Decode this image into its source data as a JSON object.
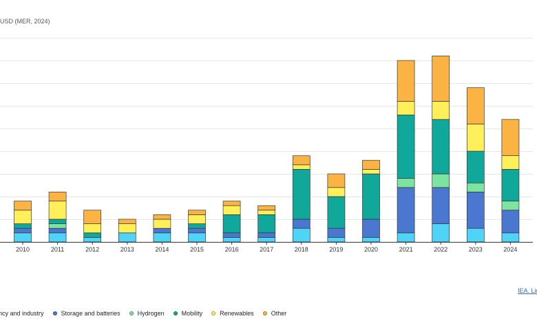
{
  "chart_data": {
    "type": "bar",
    "stacked": true,
    "unit_label": "USD (MER, 2024)",
    "categories": [
      "2010",
      "2011",
      "2012",
      "2013",
      "2014",
      "2015",
      "2016",
      "2017",
      "2018",
      "2019",
      "2020",
      "2021",
      "2022",
      "2023",
      "2024"
    ],
    "ylim": [
      0,
      9
    ],
    "grid": true,
    "legend_placement": "bottom",
    "series": [
      {
        "name": "ncy and industry",
        "color": "#4fd3f7",
        "values": [
          0.4,
          0.4,
          0.2,
          0.4,
          0.4,
          0.4,
          0.2,
          0.2,
          0.6,
          0.2,
          0.2,
          0.4,
          0.8,
          0.6,
          0.4
        ]
      },
      {
        "name": "Storage and batteries",
        "color": "#4a78d0",
        "values": [
          0.2,
          0.2,
          0,
          0,
          0.2,
          0.2,
          0.2,
          0.2,
          0.4,
          0.4,
          0.8,
          2.0,
          1.6,
          1.6,
          1.0
        ]
      },
      {
        "name": "Hydrogen",
        "color": "#7de3a0",
        "values": [
          0,
          0.2,
          0,
          0,
          0,
          0,
          0,
          0,
          0,
          0,
          0,
          0.4,
          0.6,
          0.4,
          0.4
        ]
      },
      {
        "name": "Mobility",
        "color": "#0fa89b",
        "values": [
          0.2,
          0.2,
          0.2,
          0,
          0,
          0.2,
          0.8,
          0.8,
          2.2,
          1.4,
          2.0,
          2.8,
          2.4,
          1.4,
          1.4
        ]
      },
      {
        "name": "Renewables",
        "color": "#fff05a",
        "values": [
          0.6,
          0.8,
          0.4,
          0.4,
          0.4,
          0.4,
          0.4,
          0.2,
          0.2,
          0.4,
          0.2,
          0.6,
          0.8,
          1.2,
          0.6
        ]
      },
      {
        "name": "Other",
        "color": "#fbb444",
        "values": [
          0.4,
          0.4,
          0.6,
          0.2,
          0.2,
          0.2,
          0.2,
          0.2,
          0.4,
          0.6,
          0.4,
          1.8,
          2.0,
          1.6,
          1.6
        ]
      }
    ]
  },
  "source_text": "IEA. Lic"
}
